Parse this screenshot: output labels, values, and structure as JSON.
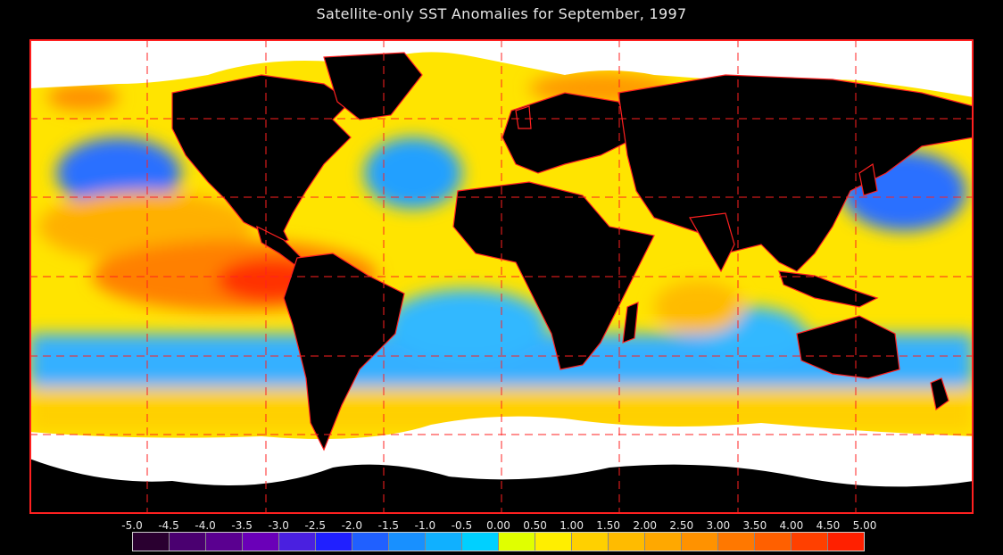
{
  "title": "Satellite-only SST Anomalies for September, 1997",
  "map": {
    "projection": "equirectangular",
    "region": "global",
    "land_color": "#000000",
    "ice_color": "#ffffff",
    "coastline_color": "#ff2020",
    "grid_color": "#ff2020",
    "grid_style": "dashed",
    "lon_grid_deg": [
      -150,
      -120,
      -90,
      -60,
      -30,
      0,
      30,
      60,
      90,
      120,
      150
    ],
    "lat_grid_deg": [
      60,
      40,
      20,
      0,
      -20,
      -40,
      -60
    ]
  },
  "colorbar": {
    "labels": [
      "-5.0",
      "-4.5",
      "-4.0",
      "-3.5",
      "-3.0",
      "-2.5",
      "-2.0",
      "-1.5",
      "-1.0",
      "-0.5",
      "0.00",
      "0.50",
      "1.00",
      "1.50",
      "2.00",
      "2.50",
      "3.00",
      "3.50",
      "4.00",
      "4.50",
      "5.00"
    ],
    "colors": [
      "#000000",
      "#2a0030",
      "#4a0070",
      "#5a0090",
      "#6a00b8",
      "#4a20e0",
      "#2020ff",
      "#2060ff",
      "#1890ff",
      "#10b0ff",
      "#00d0ff",
      "#e0ff00",
      "#ffee00",
      "#ffd000",
      "#ffbb00",
      "#ffa800",
      "#ff9200",
      "#ff7800",
      "#ff6000",
      "#ff4000",
      "#ff2000"
    ]
  }
}
